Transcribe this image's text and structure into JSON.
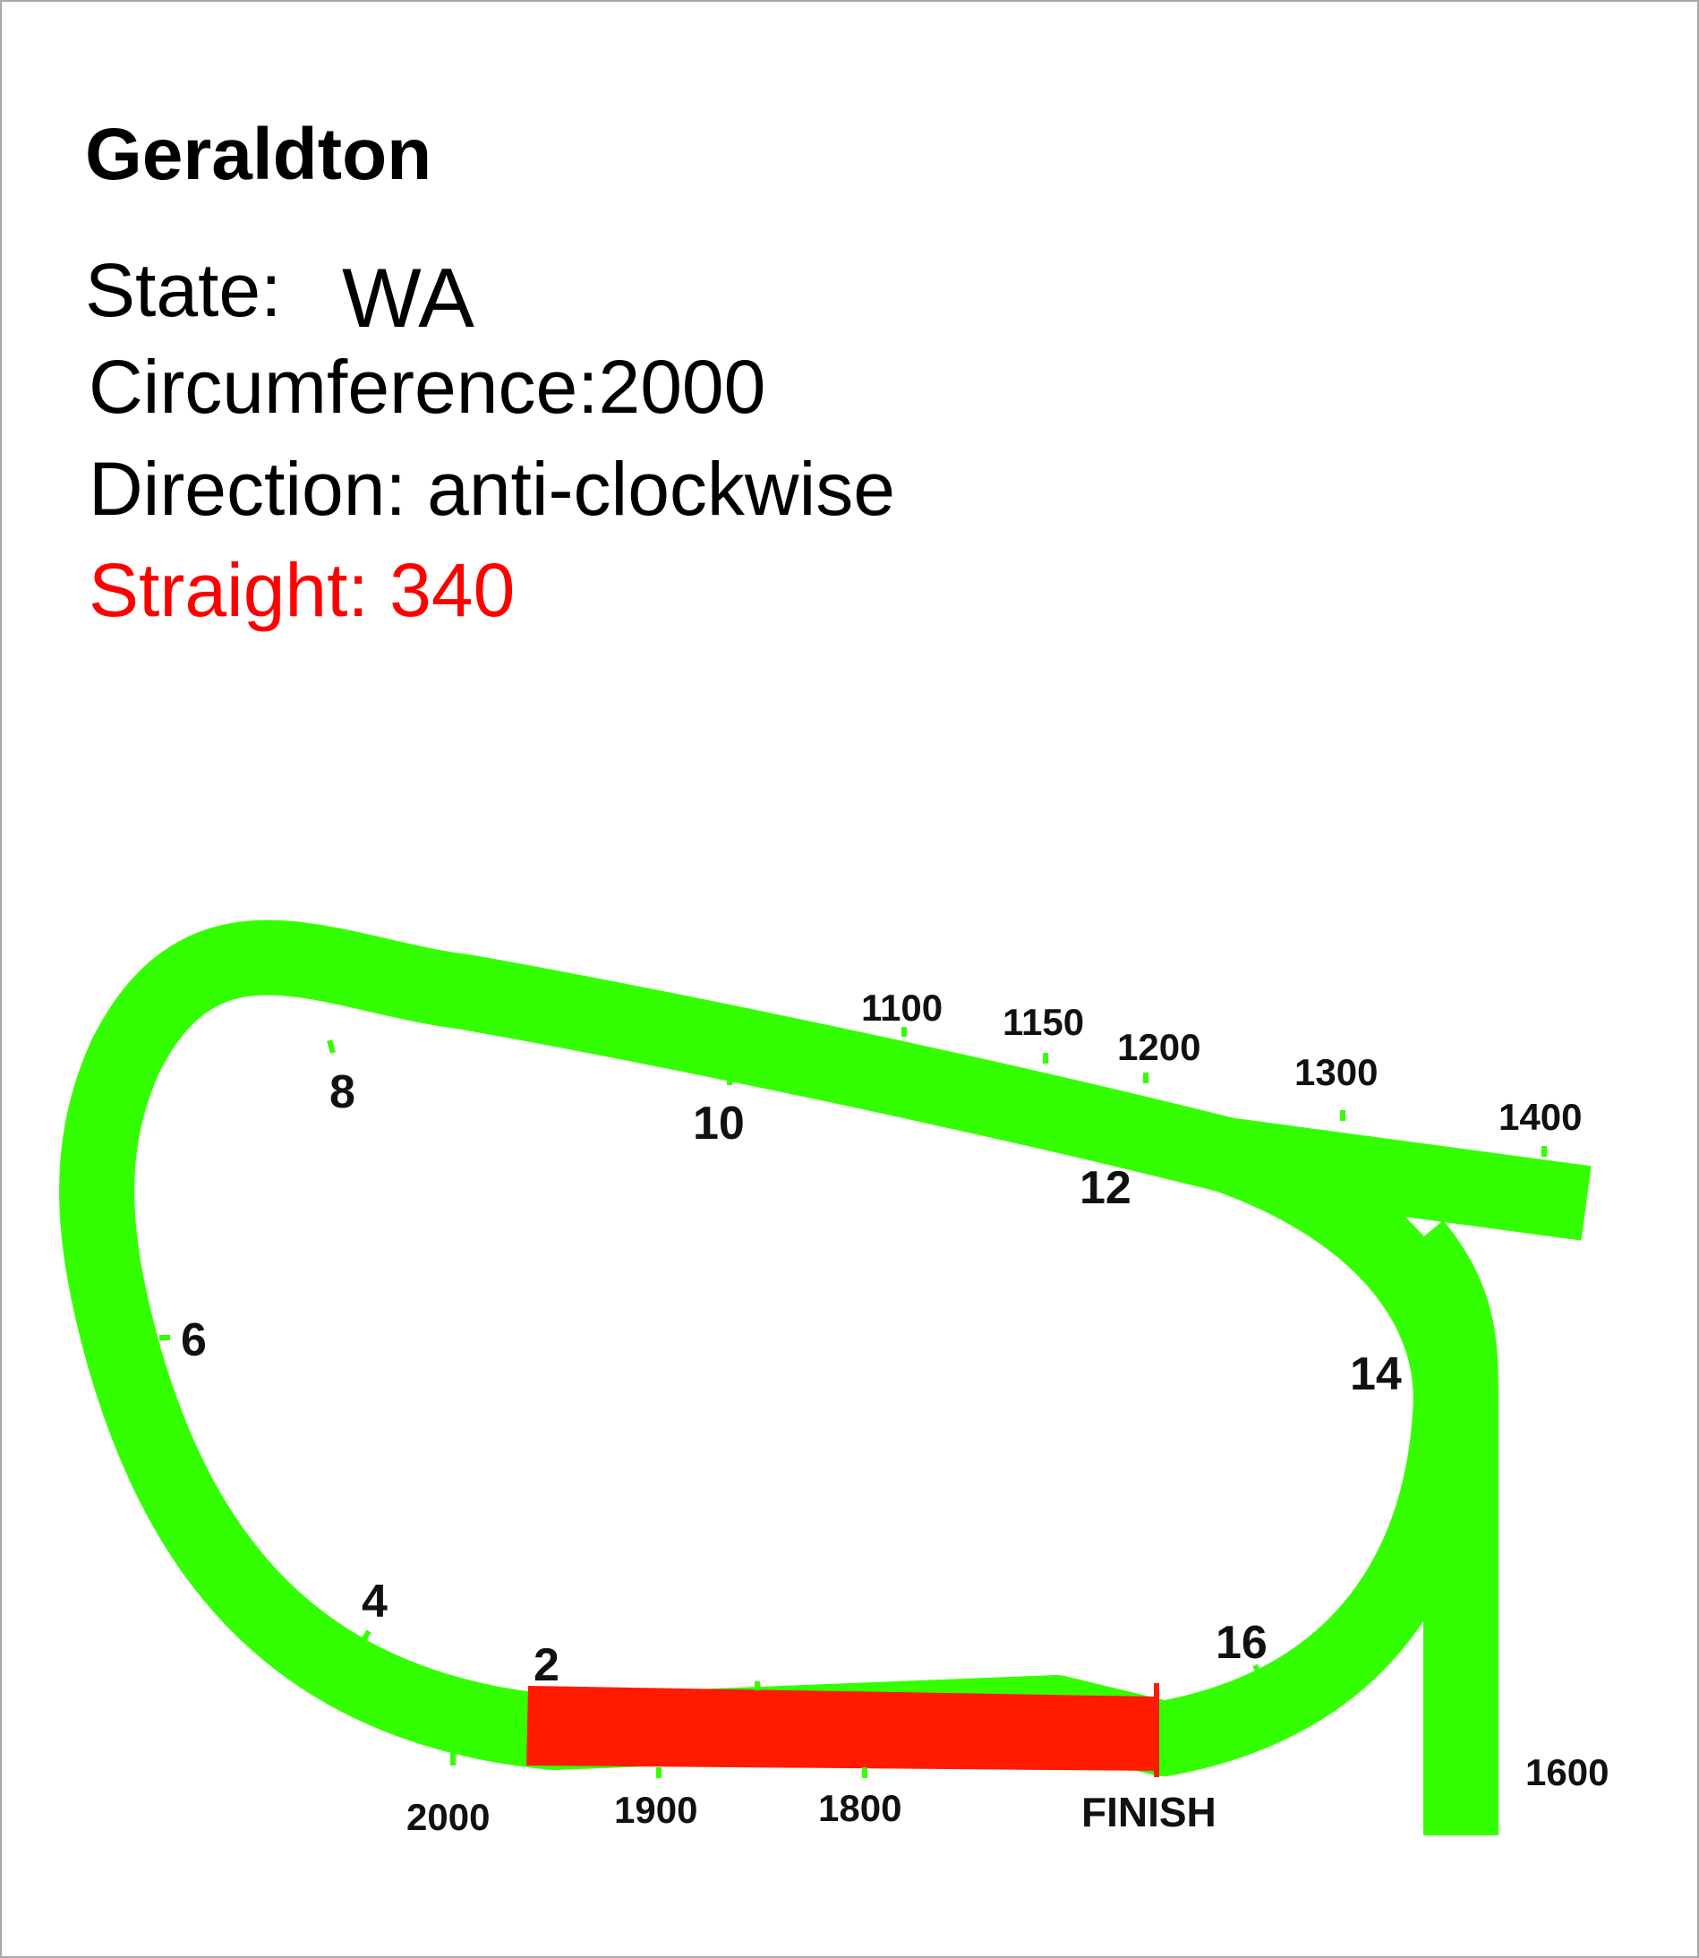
{
  "header": {
    "title": "Geraldton",
    "state_label": "State:",
    "state_value": "WA",
    "circumference_text": "Circumference:2000",
    "direction_text": "Direction: anti-clockwise",
    "straight_text": "Straight: 340"
  },
  "colors": {
    "track": "#33ff00",
    "straight": "#ff1a00",
    "straight_text": "#ff0000",
    "tick": "#33ff00",
    "finish_line": "#ff1a00"
  },
  "track_markers": {
    "furlongs": [
      "2",
      "4",
      "6",
      "8",
      "10",
      "12",
      "14",
      "16"
    ],
    "distances": [
      "1100",
      "1150",
      "1200",
      "1300",
      "1400",
      "1600",
      "1800",
      "1900",
      "2000"
    ],
    "finish": "FINISH"
  }
}
